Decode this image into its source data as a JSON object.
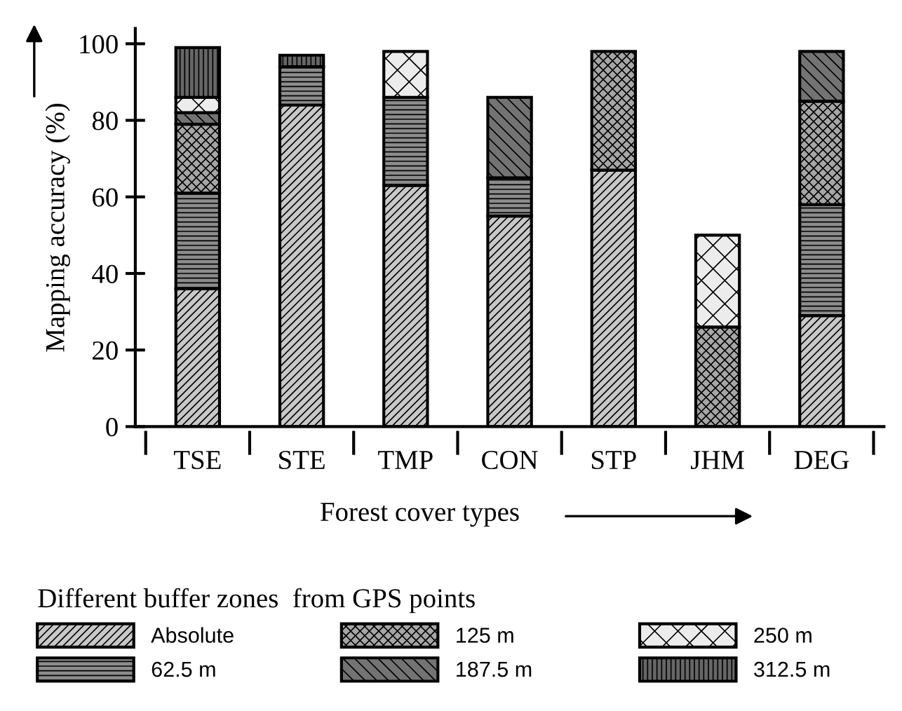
{
  "chart_data": {
    "type": "bar",
    "stacked": true,
    "xlabel": "Forest cover types",
    "ylabel": "Mapping accuracy (%)",
    "legend_title": "Different buffer zones  from GPS points",
    "categories": [
      "TSE",
      "STE",
      "TMP",
      "CON",
      "STP",
      "JHM",
      "DEG"
    ],
    "series": [
      {
        "name": "Absolute",
        "color": "#c8c8c8",
        "values": [
          36,
          84,
          63,
          55,
          67,
          null,
          29
        ]
      },
      {
        "name": "62.5 m",
        "color": "#8c8c8c",
        "values": [
          25,
          10,
          23,
          10,
          null,
          null,
          29
        ]
      },
      {
        "name": "125 m",
        "color": "#a6a6a6",
        "values": [
          18,
          null,
          null,
          null,
          31,
          26,
          27
        ]
      },
      {
        "name": "187.5 m",
        "color": "#737373",
        "values": [
          3,
          null,
          null,
          21,
          null,
          null,
          13
        ]
      },
      {
        "name": "250 m",
        "color": "#ececec",
        "values": [
          4,
          null,
          12,
          null,
          null,
          24,
          null
        ]
      },
      {
        "name": "312.5 m",
        "color": "#666666",
        "values": [
          13,
          3,
          null,
          null,
          null,
          null,
          null
        ]
      }
    ],
    "ylim": [
      0,
      104
    ],
    "yticks": [
      0,
      20,
      40,
      60,
      80,
      100
    ],
    "grid": false,
    "legend": "bottom"
  }
}
